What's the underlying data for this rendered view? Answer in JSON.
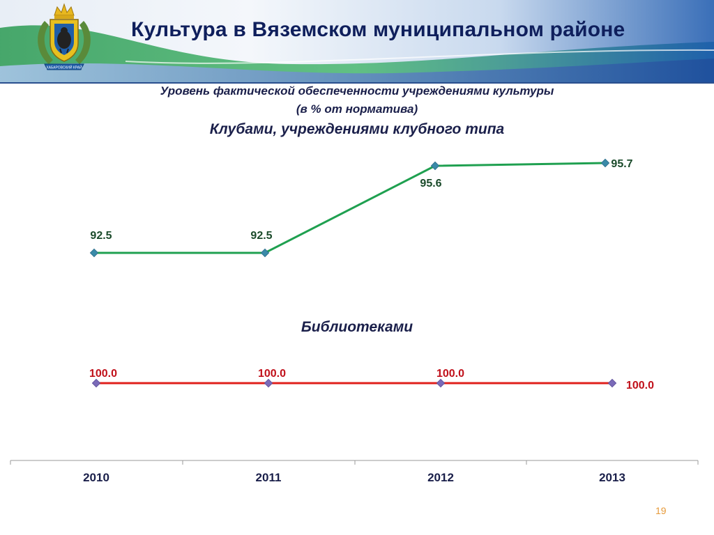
{
  "slide": {
    "title": "Культура в Вяземском муниципальном районе",
    "emblem_caption": "ХАБАРОВСКИЙ КРАЙ",
    "subtitle_line1": "Уровень фактической обеспеченности учреждениями культуры",
    "subtitle_line2": "(в % от норматива)",
    "page_number": "19"
  },
  "colors": {
    "clubs_line": "#1fa050",
    "clubs_label": "#1a4a2a",
    "libraries_line": "#e0201c",
    "libraries_label": "#c0101a",
    "marker": "#3a8aa8",
    "marker_lib": "#7a6ab8"
  },
  "chart_data": [
    {
      "type": "line",
      "title": "Клубами, учреждениями клубного типа",
      "x": [
        "2010",
        "2011",
        "2012",
        "2013"
      ],
      "series": [
        {
          "values": [
            92.5,
            92.5,
            95.6,
            95.7
          ],
          "labels": [
            "92.5",
            "92.5",
            "95.6",
            "95.7"
          ]
        }
      ]
    },
    {
      "type": "line",
      "title": "Библиотеками",
      "x": [
        "2010",
        "2011",
        "2012",
        "2013"
      ],
      "series": [
        {
          "values": [
            100.0,
            100.0,
            100.0,
            100.0
          ],
          "labels": [
            "100.0",
            "100.0",
            "100.0",
            "100.0"
          ]
        }
      ]
    }
  ]
}
